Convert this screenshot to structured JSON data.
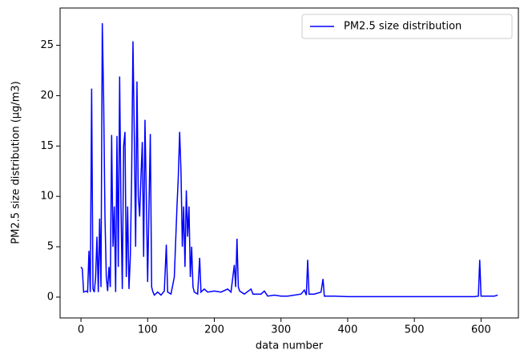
{
  "chart_data": {
    "type": "line",
    "xlabel": "data number",
    "ylabel": "PM2.5 size distribution (μg/m3)",
    "x": [
      0,
      2,
      4,
      8,
      10,
      12,
      14,
      16,
      18,
      20,
      22,
      24,
      26,
      28,
      30,
      32,
      34,
      36,
      38,
      40,
      42,
      44,
      46,
      48,
      50,
      52,
      54,
      56,
      58,
      60,
      62,
      64,
      66,
      68,
      70,
      72,
      74,
      76,
      78,
      80,
      82,
      84,
      86,
      88,
      90,
      92,
      94,
      96,
      98,
      100,
      102,
      104,
      106,
      108,
      110,
      115,
      120,
      125,
      128,
      130,
      135,
      140,
      144,
      146,
      148,
      150,
      152,
      154,
      156,
      158,
      160,
      162,
      164,
      166,
      168,
      170,
      175,
      178,
      180,
      185,
      190,
      200,
      210,
      220,
      225,
      230,
      232,
      234,
      236,
      238,
      245,
      255,
      258,
      270,
      275,
      280,
      290,
      300,
      310,
      330,
      335,
      338,
      340,
      342,
      350,
      360,
      363,
      365,
      380,
      400,
      450,
      500,
      590,
      596,
      598,
      600,
      620,
      625
    ],
    "series": [
      {
        "name": "PM2.5 size distribution",
        "color": "#0000ff",
        "values": [
          3.0,
          2.8,
          0.5,
          0.6,
          0.5,
          4.6,
          0.5,
          20.7,
          0.8,
          0.5,
          2,
          6,
          0.5,
          7.8,
          1,
          27.2,
          19.6,
          8,
          2,
          0.6,
          3,
          1,
          16.1,
          5,
          9,
          0.5,
          16,
          3,
          21.9,
          8.9,
          0.8,
          15,
          16.4,
          2,
          9,
          0.8,
          4,
          12,
          25.4,
          16,
          5,
          21.4,
          10,
          8,
          12,
          15.4,
          4,
          17.6,
          10,
          1.5,
          9,
          16.2,
          1,
          0.5,
          0.2,
          0.5,
          0.2,
          0.6,
          5.2,
          0.5,
          0.3,
          2,
          9,
          12,
          16.4,
          12.5,
          5,
          9,
          3,
          10.6,
          6,
          9,
          2,
          5,
          1,
          0.5,
          0.3,
          3.9,
          0.5,
          0.8,
          0.5,
          0.6,
          0.5,
          0.8,
          0.5,
          3.2,
          1,
          5.8,
          1,
          0.6,
          0.3,
          0.8,
          0.3,
          0.3,
          0.6,
          0.1,
          0.2,
          0.1,
          0.1,
          0.3,
          0.7,
          0.2,
          3.7,
          0.3,
          0.3,
          0.5,
          1.8,
          0.1,
          0.1,
          0.05,
          0.05,
          0.05,
          0.05,
          0.1,
          3.7,
          0.1,
          0.1,
          0.2
        ]
      }
    ],
    "xlim": [
      -31.3,
      656
    ],
    "ylim": [
      -2.07,
      28.7
    ],
    "xticks": [
      0,
      100,
      200,
      300,
      400,
      500,
      600
    ],
    "yticks": [
      0,
      5,
      10,
      15,
      20,
      25
    ],
    "grid": false,
    "legend": "upper right"
  }
}
